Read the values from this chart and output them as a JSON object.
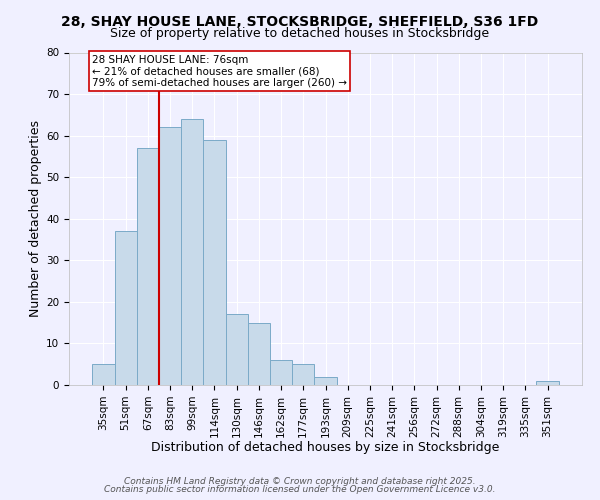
{
  "title1": "28, SHAY HOUSE LANE, STOCKSBRIDGE, SHEFFIELD, S36 1FD",
  "title2": "Size of property relative to detached houses in Stocksbridge",
  "xlabel": "Distribution of detached houses by size in Stocksbridge",
  "ylabel": "Number of detached properties",
  "bar_color": "#c8daea",
  "bar_edge_color": "#7baac8",
  "categories": [
    "35sqm",
    "51sqm",
    "67sqm",
    "83sqm",
    "99sqm",
    "114sqm",
    "130sqm",
    "146sqm",
    "162sqm",
    "177sqm",
    "193sqm",
    "209sqm",
    "225sqm",
    "241sqm",
    "256sqm",
    "272sqm",
    "288sqm",
    "304sqm",
    "319sqm",
    "335sqm",
    "351sqm"
  ],
  "values": [
    5,
    37,
    57,
    62,
    64,
    59,
    17,
    15,
    6,
    5,
    2,
    0,
    0,
    0,
    0,
    0,
    0,
    0,
    0,
    0,
    1
  ],
  "ylim": [
    0,
    80
  ],
  "yticks": [
    0,
    10,
    20,
    30,
    40,
    50,
    60,
    70,
    80
  ],
  "vline_color": "#cc0000",
  "annotation_title": "28 SHAY HOUSE LANE: 76sqm",
  "annotation_line1": "← 21% of detached houses are smaller (68)",
  "annotation_line2": "79% of semi-detached houses are larger (260) →",
  "footer1": "Contains HM Land Registry data © Crown copyright and database right 2025.",
  "footer2": "Contains public sector information licensed under the Open Government Licence v3.0.",
  "background_color": "#f0f0ff",
  "grid_color": "#ffffff",
  "title_fontsize": 10,
  "subtitle_fontsize": 9,
  "axis_label_fontsize": 9,
  "tick_fontsize": 7.5,
  "footer_fontsize": 6.5
}
